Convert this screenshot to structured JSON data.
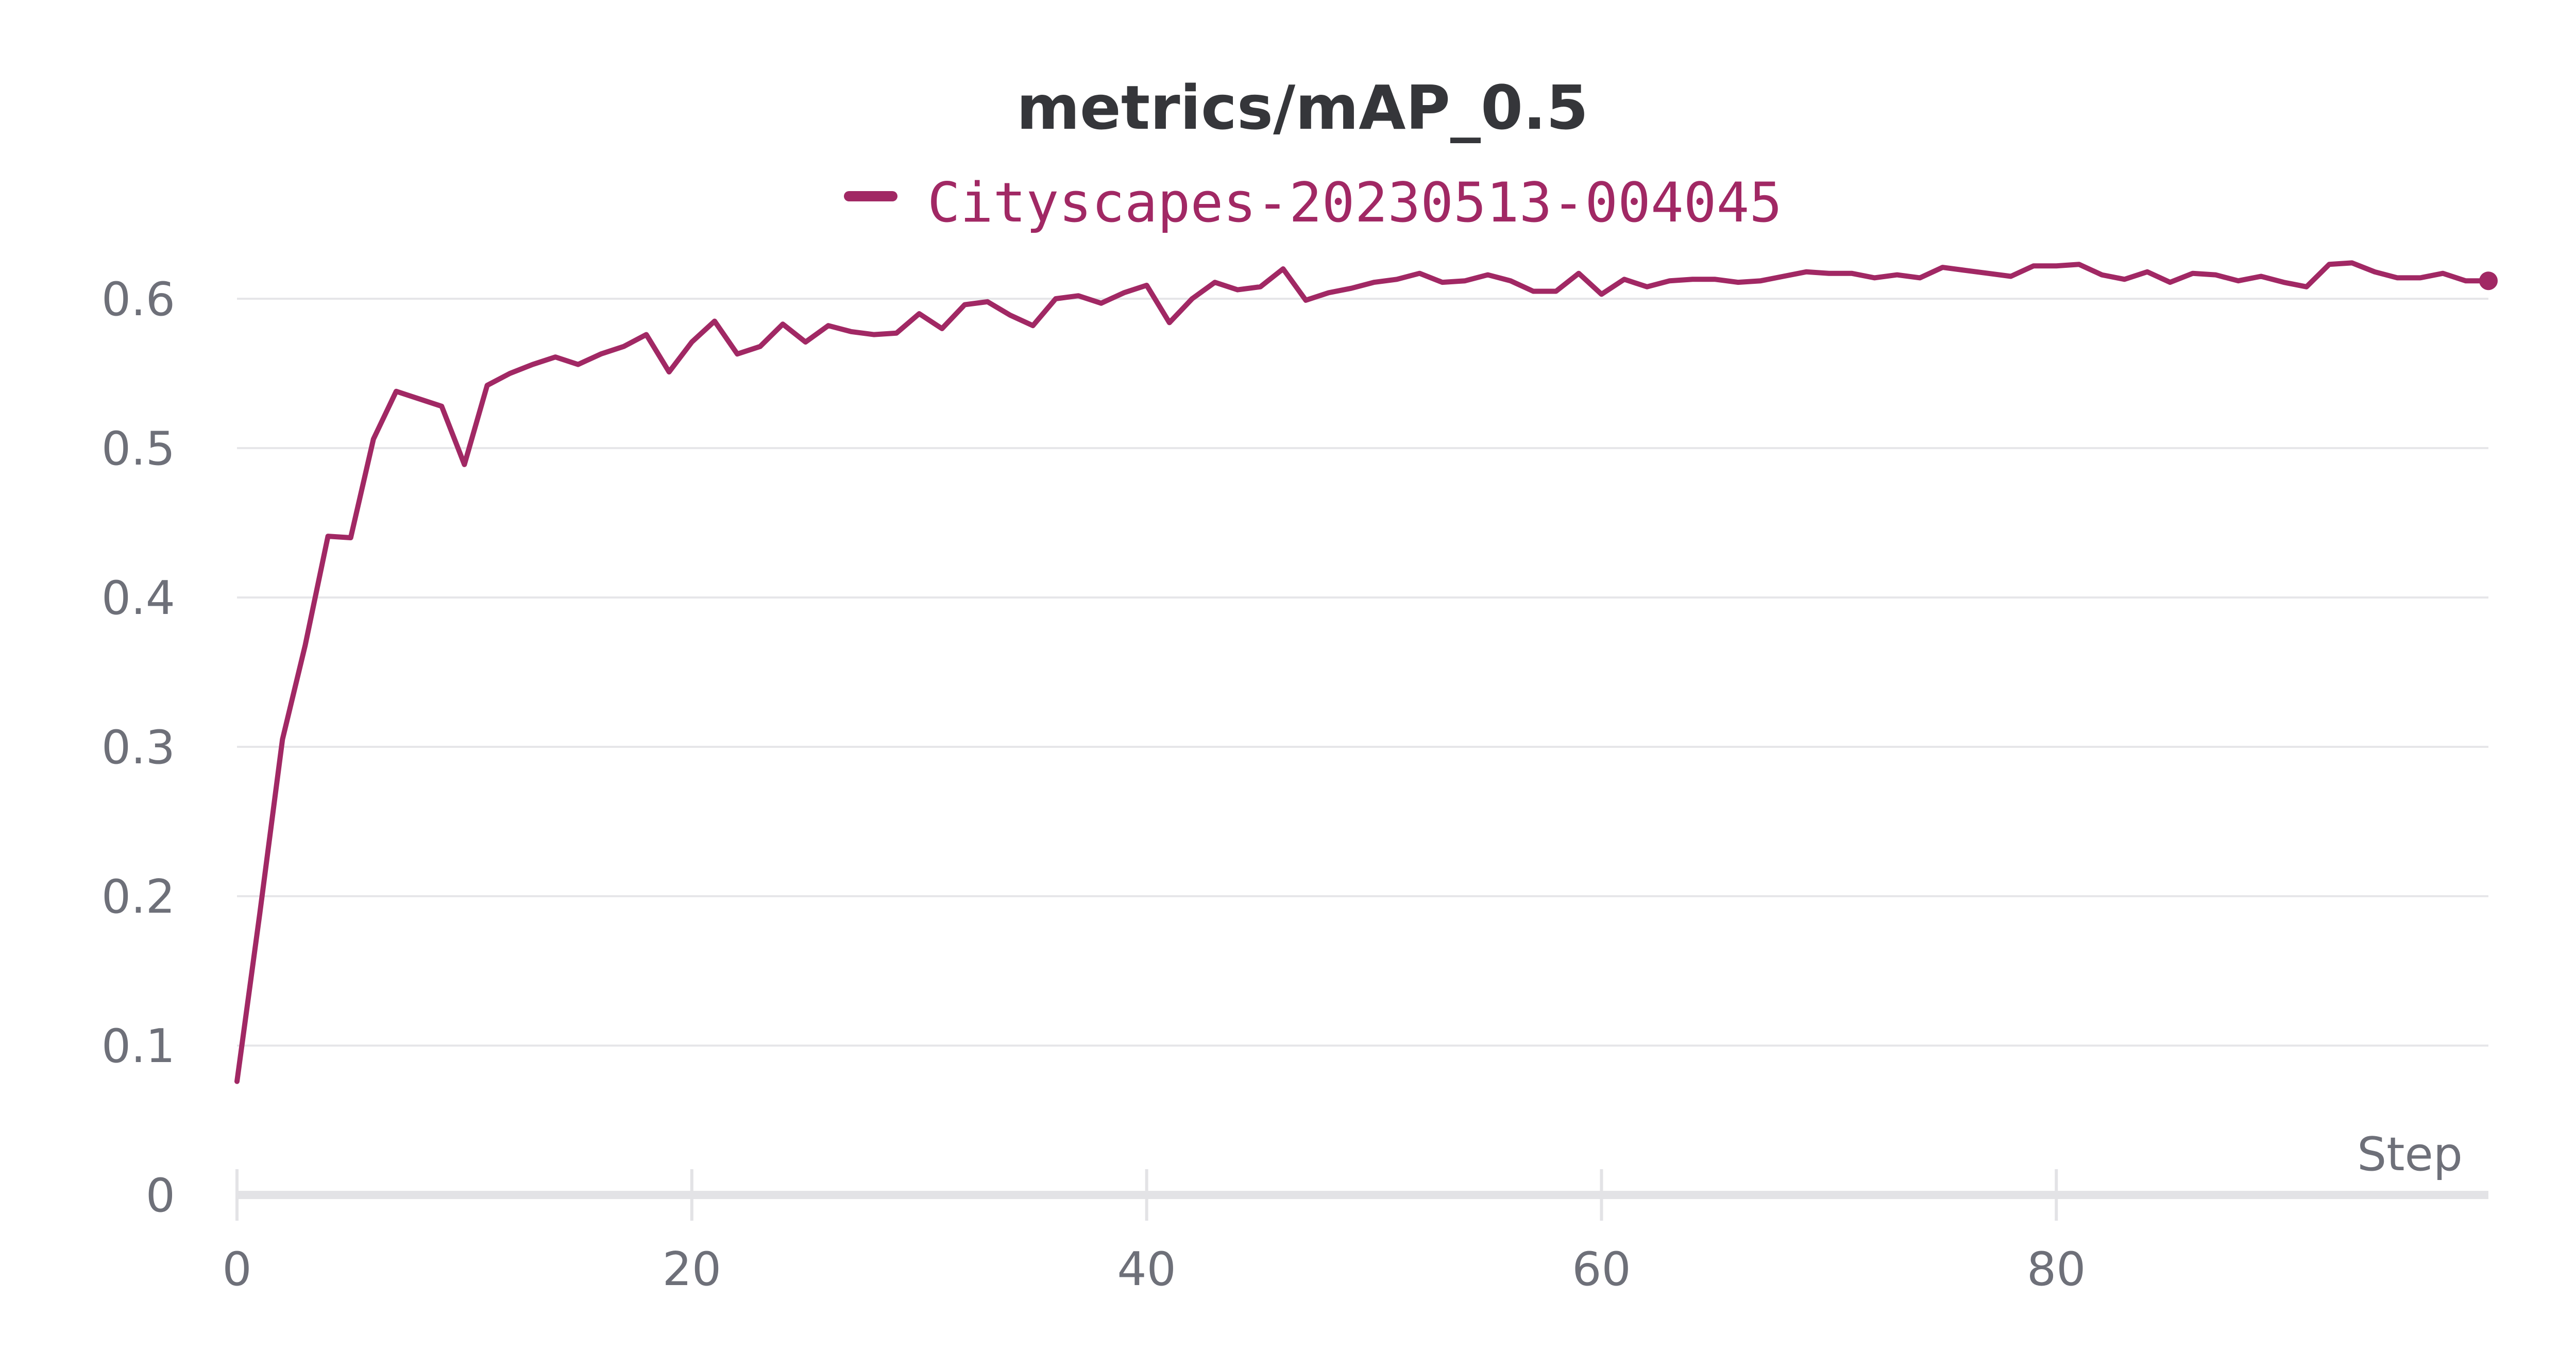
{
  "colors": {
    "series": "#a12864",
    "grid": "#e6e6e9",
    "axis": "#e3e3e6",
    "tick_text": "#6e7079",
    "title_text": "#35363a"
  },
  "chart_data": {
    "type": "line",
    "title": "metrics/mAP_0.5",
    "xlabel": "Step",
    "ylabel": "",
    "xlim": [
      0,
      99
    ],
    "ylim": [
      0,
      0.62
    ],
    "x_ticks": [
      0,
      20,
      40,
      60,
      80
    ],
    "y_ticks": [
      0,
      0.1,
      0.2,
      0.3,
      0.4,
      0.5,
      0.6
    ],
    "x_tick_labels": [
      "0",
      "20",
      "40",
      "60",
      "80"
    ],
    "y_tick_labels": [
      "0",
      "0.1",
      "0.2",
      "0.3",
      "0.4",
      "0.5",
      "0.6"
    ],
    "grid": true,
    "legend_position": "top-center",
    "series": [
      {
        "name": "Cityscapes-20230513-004045",
        "x": [
          0,
          1,
          2,
          3,
          4,
          5,
          6,
          7,
          8,
          9,
          10,
          11,
          12,
          13,
          14,
          15,
          16,
          17,
          18,
          19,
          20,
          21,
          22,
          23,
          24,
          25,
          26,
          27,
          28,
          29,
          30,
          31,
          32,
          33,
          34,
          35,
          36,
          37,
          38,
          39,
          40,
          41,
          42,
          43,
          44,
          45,
          46,
          47,
          48,
          49,
          50,
          51,
          52,
          53,
          54,
          55,
          56,
          57,
          58,
          59,
          60,
          61,
          62,
          63,
          64,
          65,
          66,
          67,
          68,
          69,
          70,
          71,
          72,
          73,
          74,
          75,
          76,
          77,
          78,
          79,
          80,
          81,
          82,
          83,
          84,
          85,
          86,
          87,
          88,
          89,
          90,
          91,
          92,
          93,
          94,
          95,
          96,
          97,
          98,
          99
        ],
        "y": [
          0.076,
          0.188,
          0.305,
          0.368,
          0.441,
          0.44,
          0.506,
          0.538,
          0.533,
          0.528,
          0.489,
          0.542,
          0.55,
          0.556,
          0.561,
          0.556,
          0.563,
          0.568,
          0.576,
          0.551,
          0.571,
          0.585,
          0.563,
          0.568,
          0.583,
          0.571,
          0.582,
          0.578,
          0.576,
          0.577,
          0.59,
          0.58,
          0.596,
          0.598,
          0.589,
          0.582,
          0.6,
          0.602,
          0.597,
          0.604,
          0.609,
          0.584,
          0.6,
          0.611,
          0.606,
          0.608,
          0.62,
          0.599,
          0.604,
          0.607,
          0.611,
          0.613,
          0.617,
          0.611,
          0.612,
          0.616,
          0.612,
          0.605,
          0.605,
          0.617,
          0.603,
          0.613,
          0.608,
          0.612,
          0.613,
          0.613,
          0.611,
          0.612,
          0.615,
          0.618,
          0.617,
          0.617,
          0.614,
          0.616,
          0.614,
          0.621,
          0.619,
          0.617,
          0.615,
          0.622,
          0.622,
          0.623,
          0.616,
          0.613,
          0.618,
          0.611,
          0.617,
          0.616,
          0.612,
          0.615,
          0.611,
          0.608,
          0.623,
          0.624,
          0.618,
          0.614,
          0.614,
          0.617,
          0.612,
          0.612
        ]
      }
    ]
  }
}
